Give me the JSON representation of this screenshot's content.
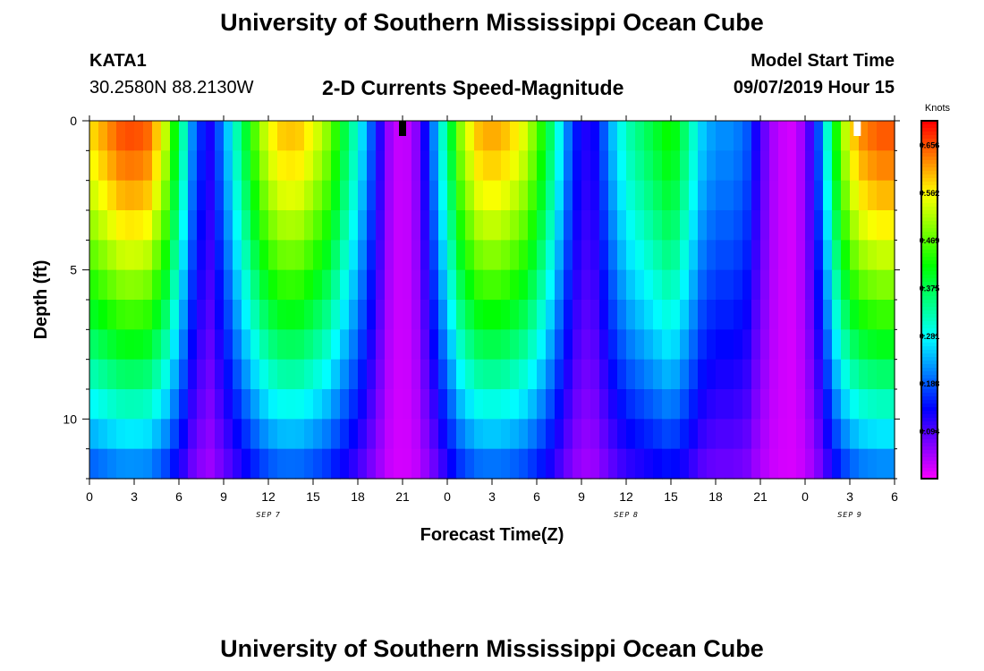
{
  "header": {
    "title_top": "University of Southern Mississippi Ocean Cube",
    "title_bottom": "University of Southern Mississippi Ocean Cube",
    "station_id": "KATA1",
    "station_coords": "30.2580N 88.2130W",
    "plot_title": "2-D Currents Speed-Magnitude",
    "model_start_label": "Model Start Time",
    "model_start_value": "09/07/2019 Hour 15"
  },
  "chart_data": {
    "type": "heatmap",
    "title": "2-D Currents Speed-Magnitude",
    "xlabel": "Forecast Time(Z)",
    "ylabel": "Depth (ft)",
    "x_tick_labels": [
      "0",
      "3",
      "6",
      "9",
      "12",
      "15",
      "18",
      "21",
      "0",
      "3",
      "6",
      "9",
      "12",
      "15",
      "18",
      "21",
      "0",
      "3",
      "6"
    ],
    "x_range_hours": [
      0,
      54
    ],
    "date_labels": [
      {
        "text": "SEP 7",
        "hour": 12
      },
      {
        "text": "SEP 8",
        "hour": 36
      },
      {
        "text": "SEP 9",
        "hour": 51
      }
    ],
    "y_tick_labels": [
      "0",
      "5",
      "10"
    ],
    "y_range_ft": [
      0,
      12
    ],
    "colorbar": {
      "unit": "Knots",
      "range": [
        0.0,
        0.703
      ],
      "tick_labels": [
        "0.656",
        "0.562",
        "0.469",
        "0.375",
        "0.281",
        "0.188",
        "0.094"
      ]
    },
    "markers": [
      {
        "name": "model-start-marker",
        "hour": 21,
        "color": "#000000"
      },
      {
        "name": "current-time-marker",
        "hour": 51.5,
        "color": "#ffffff"
      }
    ],
    "speed_profile": {
      "description": "Surface speed (knots) vs hour; speed decreases with depth",
      "hours": [
        0,
        1,
        2,
        3,
        4,
        5,
        6,
        7,
        8,
        9,
        10,
        11,
        12,
        13,
        14,
        15,
        16,
        17,
        18,
        19,
        20,
        21,
        22,
        23,
        24,
        25,
        26,
        27,
        28,
        29,
        30,
        31,
        32,
        33,
        34,
        35,
        36,
        37,
        38,
        39,
        40,
        41,
        42,
        43,
        44,
        45,
        46,
        47,
        48,
        49,
        50,
        51,
        52,
        53,
        54
      ],
      "surface_knots": [
        0.58,
        0.62,
        0.66,
        0.67,
        0.65,
        0.55,
        0.38,
        0.2,
        0.12,
        0.22,
        0.34,
        0.46,
        0.56,
        0.6,
        0.6,
        0.56,
        0.5,
        0.4,
        0.3,
        0.18,
        0.06,
        0.02,
        0.07,
        0.2,
        0.36,
        0.52,
        0.6,
        0.62,
        0.6,
        0.56,
        0.48,
        0.36,
        0.22,
        0.12,
        0.14,
        0.24,
        0.32,
        0.36,
        0.4,
        0.44,
        0.36,
        0.26,
        0.22,
        0.22,
        0.2,
        0.1,
        0.04,
        0.02,
        0.06,
        0.2,
        0.42,
        0.58,
        0.64,
        0.66,
        0.66
      ]
    }
  }
}
